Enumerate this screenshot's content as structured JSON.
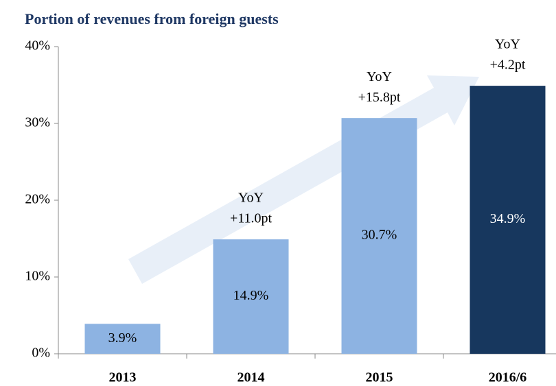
{
  "chart_data": {
    "type": "bar",
    "title": "Portion of revenues from foreign guests",
    "categories": [
      "2013",
      "2014",
      "2015",
      "2016/6"
    ],
    "values": [
      3.9,
      14.9,
      30.7,
      34.9
    ],
    "value_labels": [
      "3.9%",
      "14.9%",
      "30.7%",
      "34.9%"
    ],
    "colors": [
      "#8db3e2",
      "#8db3e2",
      "#8db3e2",
      "#17375e"
    ],
    "annotations": [
      null,
      [
        "YoY",
        "+11.0pt"
      ],
      [
        "YoY",
        "+15.8pt"
      ],
      [
        "YoY",
        "+4.2pt"
      ]
    ],
    "ylim": [
      0,
      40
    ],
    "yticks": [
      {
        "value": 0,
        "label": "0%"
      },
      {
        "value": 10,
        "label": "10%"
      },
      {
        "value": 20,
        "label": "20%"
      },
      {
        "value": 30,
        "label": "30%"
      },
      {
        "value": 40,
        "label": "40%"
      }
    ]
  }
}
